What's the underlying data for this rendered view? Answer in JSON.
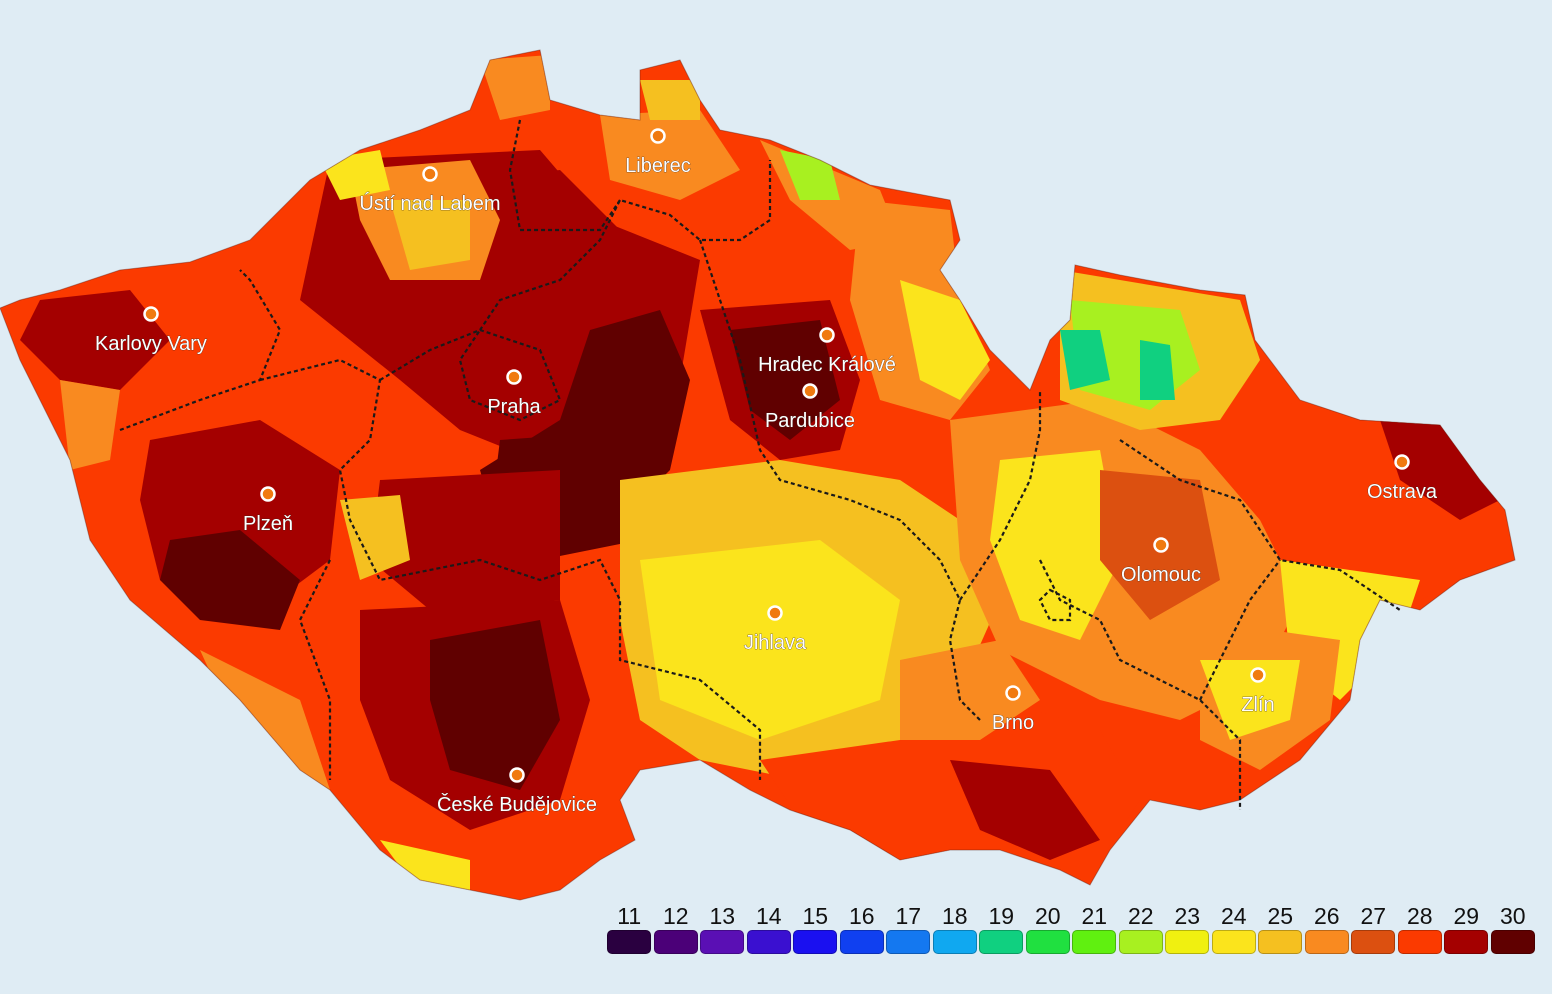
{
  "colors": {
    "background": "#dfecf4",
    "border_line": "#1a1a1a",
    "city_marker_fill": "#f07a10",
    "city_marker_stroke": "#ffffff"
  },
  "cities": [
    {
      "name": "Liberec"
    },
    {
      "name": "Ústí nad Labem"
    },
    {
      "name": "Karlovy Vary"
    },
    {
      "name": "Praha"
    },
    {
      "name": "Hradec Králové"
    },
    {
      "name": "Pardubice"
    },
    {
      "name": "Plzeň"
    },
    {
      "name": "Ostrava"
    },
    {
      "name": "Olomouc"
    },
    {
      "name": "Jihlava"
    },
    {
      "name": "Brno"
    },
    {
      "name": "Zlín"
    },
    {
      "name": "České Budějovice"
    }
  ],
  "legend": [
    {
      "label": "11",
      "color": "#2a0040"
    },
    {
      "label": "12",
      "color": "#4b0078"
    },
    {
      "label": "13",
      "color": "#5a0fb4"
    },
    {
      "label": "14",
      "color": "#3a10d0"
    },
    {
      "label": "15",
      "color": "#1a10f0"
    },
    {
      "label": "16",
      "color": "#1040f0"
    },
    {
      "label": "17",
      "color": "#1478f0"
    },
    {
      "label": "18",
      "color": "#10a8f0"
    },
    {
      "label": "19",
      "color": "#10d080"
    },
    {
      "label": "20",
      "color": "#20e040"
    },
    {
      "label": "21",
      "color": "#60f010"
    },
    {
      "label": "22",
      "color": "#a8f020"
    },
    {
      "label": "23",
      "color": "#f0f010"
    },
    {
      "label": "24",
      "color": "#fbe41c"
    },
    {
      "label": "25",
      "color": "#f5c020"
    },
    {
      "label": "26",
      "color": "#f98a20"
    },
    {
      "label": "27",
      "color": "#dc5010"
    },
    {
      "label": "28",
      "color": "#fb3a00"
    },
    {
      "label": "29",
      "color": "#a40000"
    },
    {
      "label": "30",
      "color": "#600000"
    }
  ]
}
